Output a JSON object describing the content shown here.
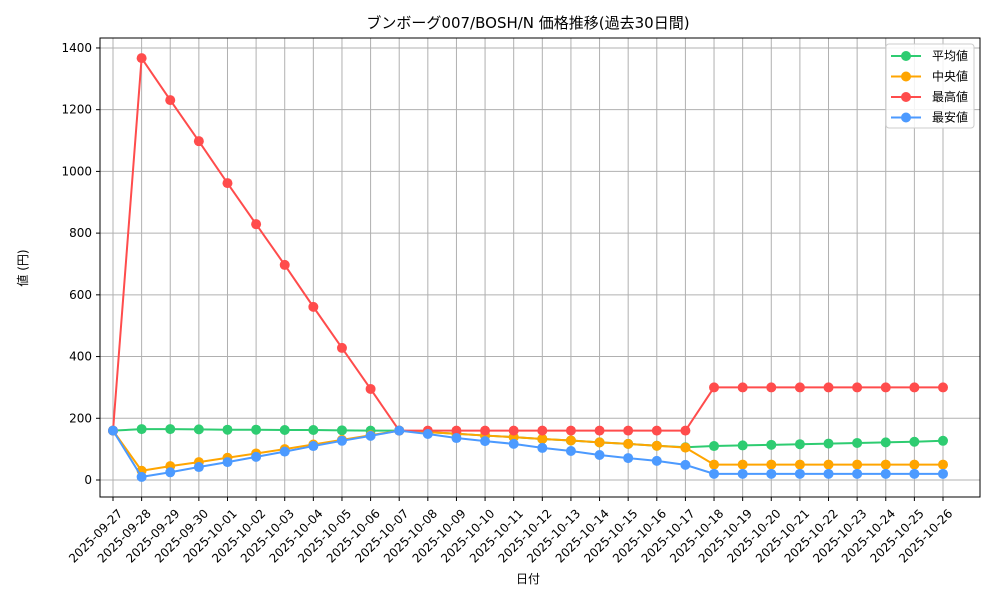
{
  "chart_data": {
    "type": "line",
    "title": "ブンボーグ007/BOSH/N 価格推移(過去30日間)",
    "xlabel": "日付",
    "ylabel": "値 (円)",
    "ylim": [
      -55,
      1430
    ],
    "yticks": [
      0,
      200,
      400,
      600,
      800,
      1000,
      1200,
      1400
    ],
    "grid": true,
    "legend_position": "top-right",
    "x": [
      "2025-09-27",
      "2025-09-28",
      "2025-09-29",
      "2025-09-30",
      "2025-10-01",
      "2025-10-02",
      "2025-10-03",
      "2025-10-04",
      "2025-10-05",
      "2025-10-06",
      "2025-10-07",
      "2025-10-08",
      "2025-10-09",
      "2025-10-10",
      "2025-10-11",
      "2025-10-12",
      "2025-10-13",
      "2025-10-14",
      "2025-10-15",
      "2025-10-16",
      "2025-10-17",
      "2025-10-18",
      "2025-10-19",
      "2025-10-20",
      "2025-10-21",
      "2025-10-22",
      "2025-10-23",
      "2025-10-24",
      "2025-10-25",
      "2025-10-26"
    ],
    "series": [
      {
        "name": "平均値",
        "color": "#2ecc71",
        "values": [
          160,
          165,
          165,
          164,
          163,
          163,
          162,
          162,
          161,
          160,
          160,
          155,
          150,
          144,
          139,
          133,
          128,
          122,
          117,
          111,
          106,
          110,
          112,
          114,
          116,
          118,
          120,
          122,
          124,
          127
        ]
      },
      {
        "name": "中央値",
        "color": "#ffa500",
        "values": [
          160,
          30,
          45,
          58,
          72,
          86,
          100,
          115,
          130,
          145,
          160,
          155,
          150,
          144,
          139,
          133,
          128,
          122,
          117,
          111,
          105,
          50,
          50,
          50,
          50,
          50,
          50,
          50,
          50,
          50
        ]
      },
      {
        "name": "最高値",
        "color": "#ff4c4c",
        "values": [
          160,
          1367,
          1231,
          1098,
          962,
          829,
          697,
          561,
          428,
          295,
          160,
          160,
          160,
          160,
          160,
          160,
          160,
          160,
          160,
          160,
          160,
          300,
          300,
          300,
          300,
          300,
          300,
          300,
          300,
          300
        ]
      },
      {
        "name": "最安値",
        "color": "#4c9aff",
        "values": [
          160,
          10,
          25,
          42,
          58,
          75,
          92,
          110,
          127,
          143,
          160,
          149,
          136,
          126,
          117,
          104,
          94,
          81,
          71,
          62,
          49,
          20,
          20,
          20,
          20,
          20,
          20,
          20,
          20,
          20
        ]
      }
    ]
  }
}
